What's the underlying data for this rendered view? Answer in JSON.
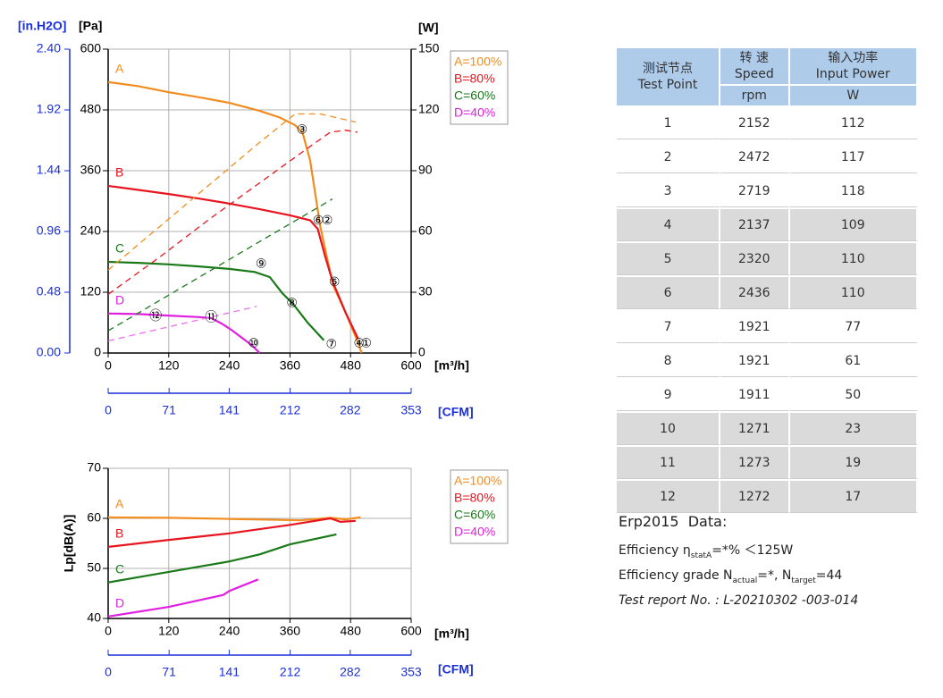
{
  "chart_data": [
    {
      "type": "line",
      "xlabel": "[m³/h]",
      "x2label": "[CFM]",
      "ylabel": "[Pa]",
      "yalt_label": "[in.H2O]",
      "y2label": "[W]",
      "xlim": [
        0,
        600
      ],
      "xticks": [
        0,
        120,
        240,
        360,
        480,
        600
      ],
      "x2lim": [
        0,
        353
      ],
      "x2ticks": [
        0,
        71,
        141,
        212,
        282,
        353
      ],
      "ylim": [
        0,
        600
      ],
      "yticks": [
        0,
        120,
        240,
        360,
        480,
        600
      ],
      "yalt_lim": [
        0,
        2.4
      ],
      "yalt_ticks": [
        {
          "value": 0,
          "label": "0.00"
        },
        0.48,
        0.96,
        1.44,
        1.92,
        {
          "value": 2.4,
          "label": "2.40"
        }
      ],
      "y2lim": [
        0,
        150
      ],
      "y2ticks": [
        0,
        30,
        60,
        90,
        120,
        150
      ],
      "grid": true,
      "legend": "outside right",
      "series": [
        {
          "name": "A=100%",
          "label": "A",
          "color": "#f28c1e",
          "x": [
            0,
            60,
            120,
            180,
            240,
            300,
            340,
            370,
            385,
            400,
            420,
            445,
            470,
            495,
            502
          ],
          "values": [
            535,
            527,
            515,
            505,
            494,
            478,
            465,
            450,
            435,
            380,
            250,
            135,
            80,
            20,
            0
          ]
        },
        {
          "name": "B=80%",
          "label": "B",
          "color": "#e8141e",
          "x": [
            0,
            60,
            120,
            180,
            240,
            300,
            360,
            400,
            415,
            430,
            445,
            470,
            495
          ],
          "values": [
            330,
            322,
            314,
            305,
            295,
            284,
            272,
            262,
            245,
            190,
            140,
            80,
            28
          ]
        },
        {
          "name": "C=60%",
          "label": "C",
          "color": "#1a7a1a",
          "x": [
            0,
            60,
            120,
            180,
            240,
            290,
            320,
            345,
            366,
            395,
            427
          ],
          "values": [
            180,
            178,
            175,
            171,
            166,
            160,
            150,
            118,
            97,
            60,
            25
          ]
        },
        {
          "name": "D=40%",
          "label": "D",
          "color": "#e020e0",
          "x": [
            0,
            60,
            120,
            180,
            204,
            225,
            245,
            265,
            285,
            300
          ],
          "values": [
            78,
            77,
            74,
            71,
            69,
            58,
            45,
            30,
            15,
            0
          ]
        },
        {
          "axis": "y2",
          "dashed": true,
          "color": "#f28c1e",
          "x": [
            0,
            100,
            200,
            300,
            370,
            420,
            490
          ],
          "values": [
            41,
            62,
            83,
            104,
            118,
            118,
            114
          ]
        },
        {
          "axis": "y2",
          "dashed": true,
          "color": "#e8141e",
          "x": [
            0,
            100,
            200,
            300,
            400,
            440,
            470,
            494
          ],
          "values": [
            29,
            47,
            66,
            84,
            102,
            109,
            110,
            109
          ]
        },
        {
          "axis": "y2",
          "dashed": true,
          "color": "#1a7a1a",
          "x": [
            0,
            150,
            300,
            444
          ],
          "values": [
            11,
            33,
            55,
            76
          ]
        },
        {
          "axis": "y2",
          "dashed": true,
          "color": "#f070f0",
          "x": [
            0,
            294
          ],
          "values": [
            6,
            23
          ]
        }
      ],
      "annotations": [
        {
          "text": "①",
          "x": 511,
          "y": 18
        },
        {
          "text": "②",
          "x": 434,
          "y": 261
        },
        {
          "text": "③",
          "x": 384,
          "y": 440
        },
        {
          "text": "④",
          "x": 497,
          "y": 18
        },
        {
          "text": "⑤",
          "x": 448,
          "y": 139
        },
        {
          "text": "⑥",
          "x": 416,
          "y": 261
        },
        {
          "text": "⑦",
          "x": 442,
          "y": 16
        },
        {
          "text": "⑧",
          "x": 364,
          "y": 97
        },
        {
          "text": "⑨",
          "x": 303,
          "y": 175
        },
        {
          "text": "⑩",
          "x": 288,
          "y": 18
        },
        {
          "text": "⑪",
          "x": 204,
          "y": 69
        },
        {
          "text": "⑫",
          "x": 94,
          "y": 72
        }
      ]
    },
    {
      "type": "line",
      "xlabel": "[m³/h]",
      "x2label": "[CFM]",
      "ylabel": "Lp[dB(A)]",
      "xlim": [
        0,
        600
      ],
      "xticks": [
        0,
        120,
        240,
        360,
        480,
        600
      ],
      "x2lim": [
        0,
        353
      ],
      "x2ticks": [
        0,
        71,
        141,
        212,
        282,
        353
      ],
      "ylim": [
        40,
        70
      ],
      "yticks": [
        40,
        50,
        60,
        70
      ],
      "grid": true,
      "legend": "outside right",
      "series": [
        {
          "name": "A=100%",
          "label": "A",
          "color": "#f28c1e",
          "x": [
            0,
            120,
            240,
            340,
            380,
            440,
            470,
            500
          ],
          "values": [
            60.2,
            60.1,
            59.9,
            59.7,
            59.6,
            60.1,
            59.8,
            60.2
          ]
        },
        {
          "name": "B=80%",
          "label": "B",
          "color": "#e8141e",
          "x": [
            0,
            120,
            240,
            360,
            440,
            460,
            490
          ],
          "values": [
            54.3,
            55.7,
            57,
            58.7,
            60,
            59.3,
            59.5
          ]
        },
        {
          "name": "C=60%",
          "label": "C",
          "color": "#1a7a1a",
          "x": [
            0,
            120,
            240,
            300,
            360,
            452
          ],
          "values": [
            47.2,
            49.3,
            51.4,
            52.8,
            54.8,
            56.8
          ]
        },
        {
          "name": "D=40%",
          "label": "D",
          "color": "#e020e0",
          "x": [
            0,
            120,
            228,
            240,
            297
          ],
          "values": [
            40.4,
            42.3,
            44.7,
            45.5,
            47.8
          ]
        }
      ]
    }
  ],
  "table": {
    "header": [
      [
        "测试节点",
        "Test Point"
      ],
      [
        "转 速",
        "Speed"
      ],
      [
        "输入功率",
        "Input Power"
      ]
    ],
    "units": [
      "rpm",
      "W"
    ],
    "rows": [
      [
        1,
        2152,
        112
      ],
      [
        2,
        2472,
        117
      ],
      [
        3,
        2719,
        118
      ],
      [
        4,
        2137,
        109
      ],
      [
        5,
        2320,
        110
      ],
      [
        6,
        2436,
        110
      ],
      [
        7,
        1921,
        77
      ],
      [
        8,
        1921,
        61
      ],
      [
        9,
        1911,
        50
      ],
      [
        10,
        1271,
        23
      ],
      [
        11,
        1273,
        19
      ],
      [
        12,
        1272,
        17
      ]
    ]
  },
  "erp": {
    "title": "Erp2015  Data:",
    "efficiency": [
      "Efficiency η",
      "statA",
      "=*% ＜125W"
    ],
    "grade": [
      "Efficiency grade N",
      "actual",
      "=*, N",
      "target",
      "=44"
    ],
    "report": "Test report No. : L-20210302 -003-014"
  }
}
